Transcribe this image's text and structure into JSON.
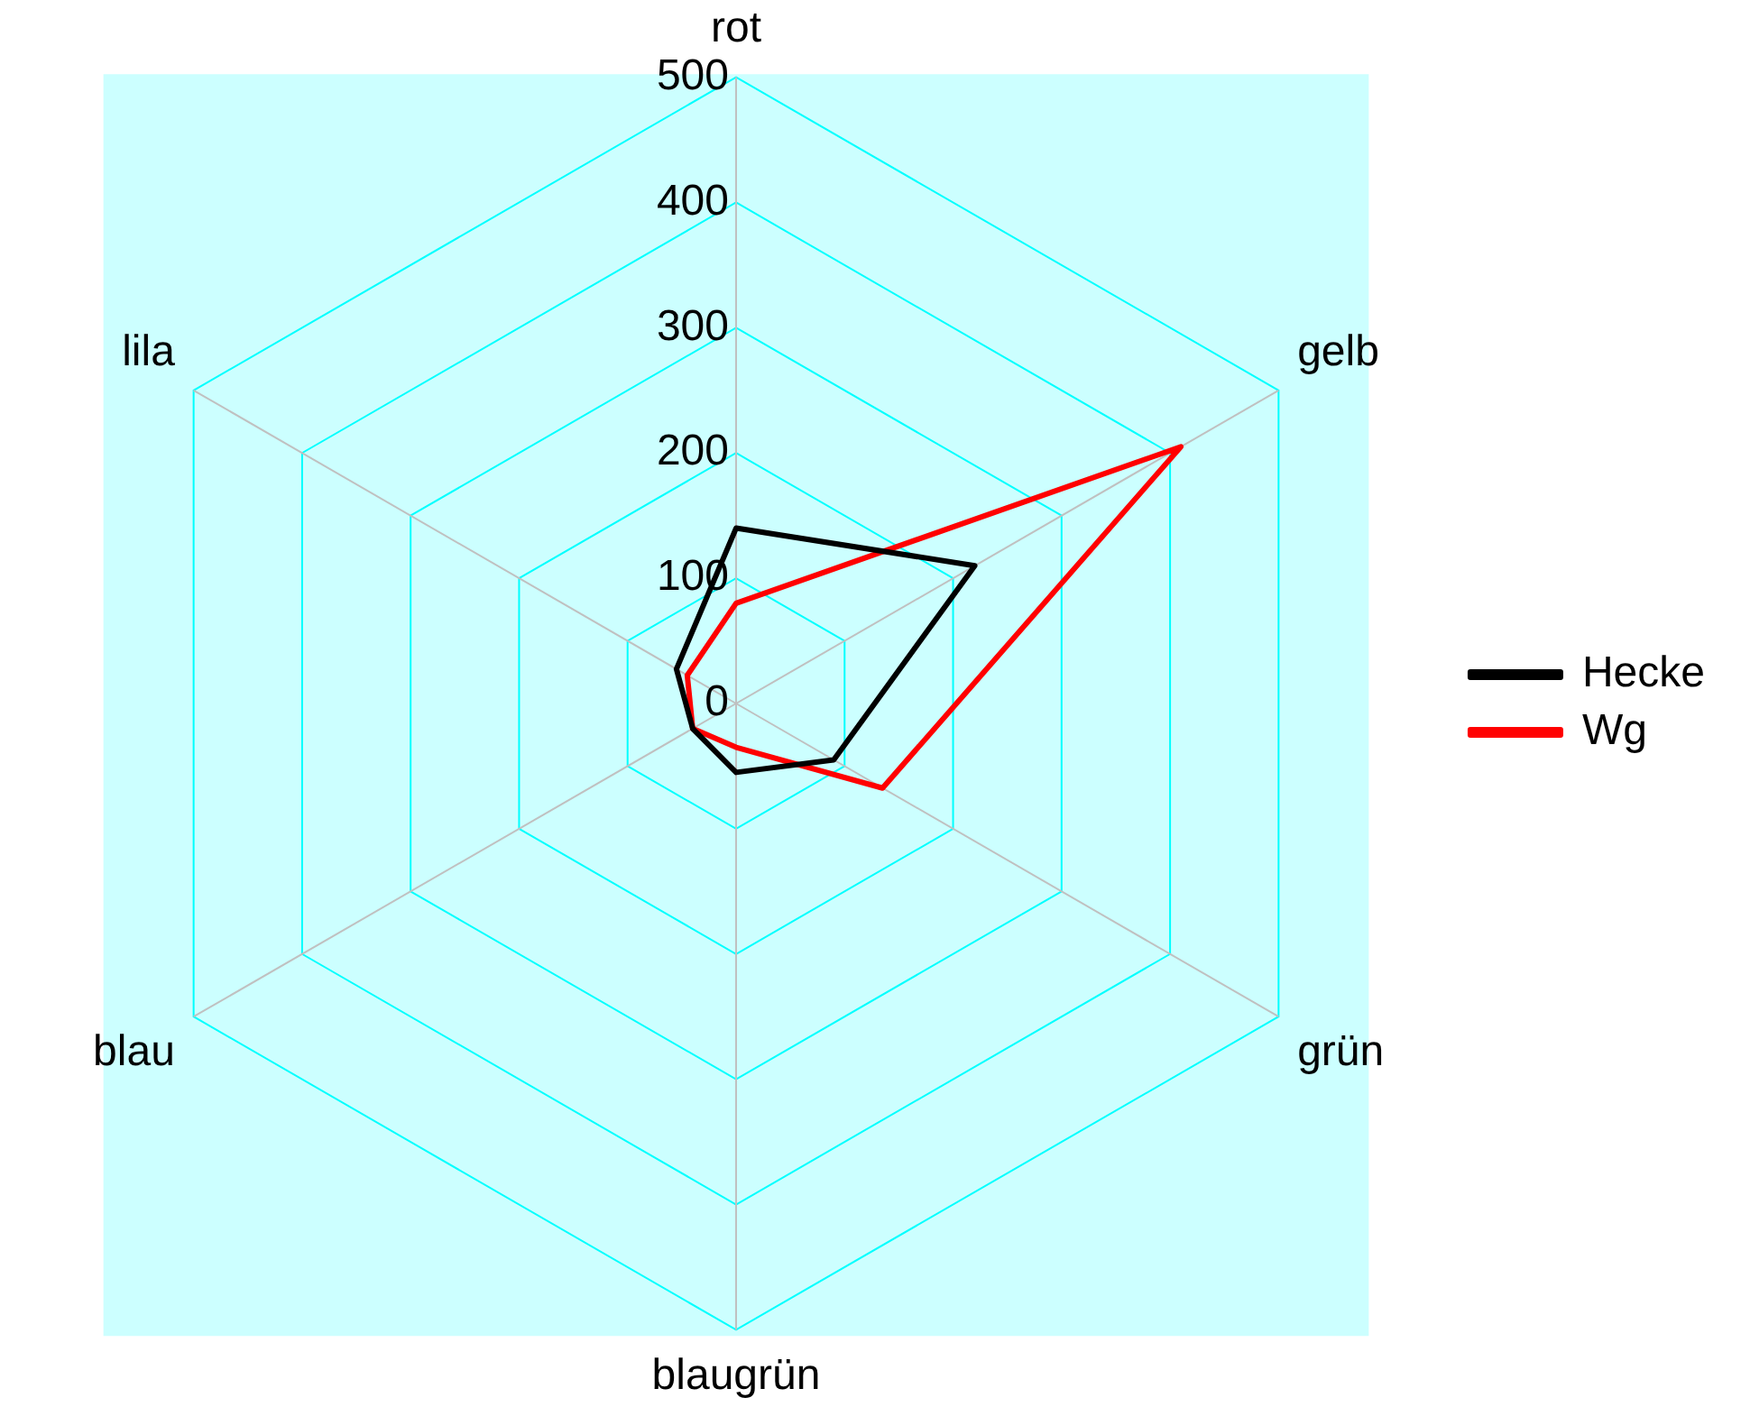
{
  "chart_data": {
    "type": "radar",
    "categories": [
      "rot",
      "gelb",
      "grün",
      "blaugrün",
      "blau",
      "lila"
    ],
    "series": [
      {
        "name": "Hecke",
        "color": "#000000",
        "values": [
          140,
          220,
          90,
          55,
          40,
          55
        ]
      },
      {
        "name": "Wg",
        "color": "#ff0000",
        "values": [
          80,
          410,
          135,
          35,
          40,
          45
        ]
      }
    ],
    "ylim": [
      0,
      500
    ],
    "yticks": [
      0,
      100,
      200,
      300,
      400,
      500
    ],
    "grid": true,
    "legend": "right"
  }
}
